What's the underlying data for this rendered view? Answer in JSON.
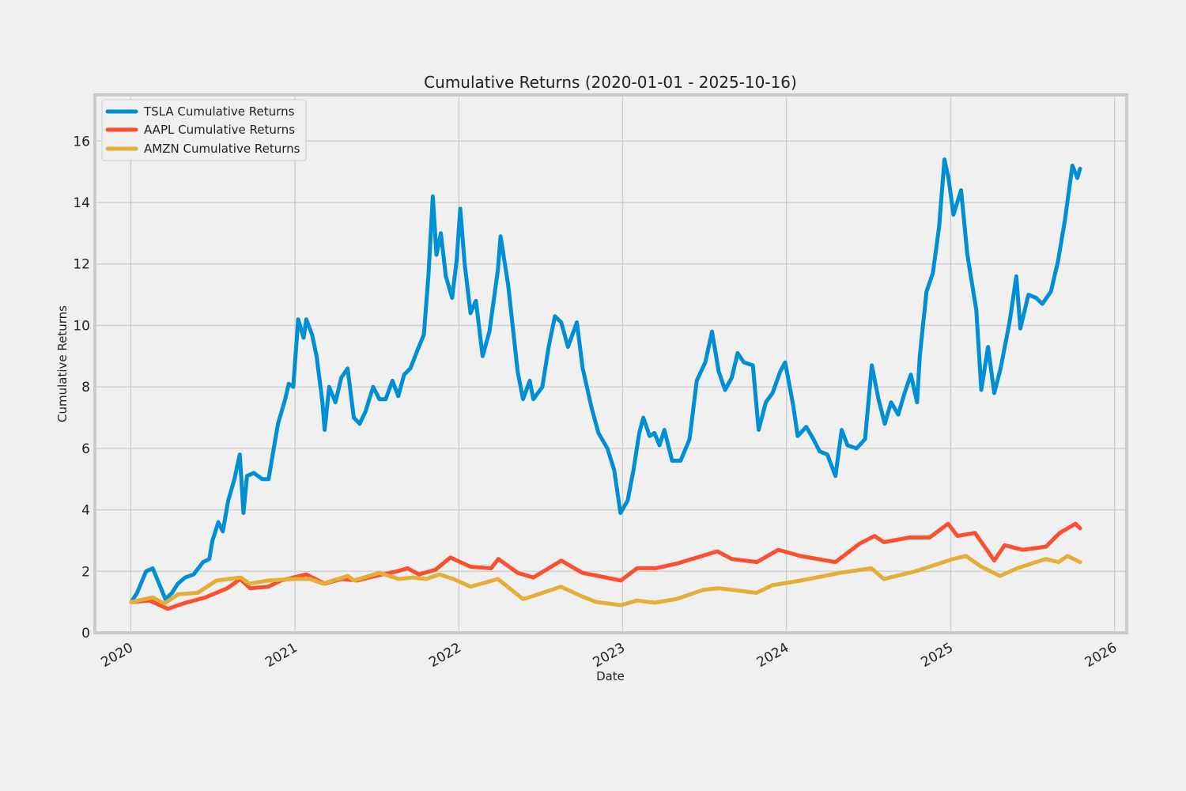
{
  "chart_data": {
    "type": "line",
    "title": "Cumulative Returns (2020-01-01 - 2025-10-16)",
    "xlabel": "Date",
    "ylabel": "Cumulative Returns",
    "xlim": [
      "2019-10-13",
      "2026-01-28"
    ],
    "ylim": [
      0,
      17.5
    ],
    "x_ticks": [
      "2020",
      "2021",
      "2022",
      "2023",
      "2024",
      "2025",
      "2026"
    ],
    "y_ticks": [
      0,
      2,
      4,
      6,
      8,
      10,
      12,
      14,
      16
    ],
    "grid": true,
    "legend_position": "top-left",
    "series": [
      {
        "name": "TSLA Cumulative Returns",
        "color": "#008fd5",
        "points": [
          [
            "2020-01-02",
            1.0
          ],
          [
            "2020-01-15",
            1.3
          ],
          [
            "2020-02-04",
            2.0
          ],
          [
            "2020-02-19",
            2.1
          ],
          [
            "2020-03-04",
            1.6
          ],
          [
            "2020-03-18",
            1.1
          ],
          [
            "2020-04-02",
            1.3
          ],
          [
            "2020-04-15",
            1.6
          ],
          [
            "2020-05-01",
            1.8
          ],
          [
            "2020-05-20",
            1.9
          ],
          [
            "2020-06-10",
            2.3
          ],
          [
            "2020-06-24",
            2.4
          ],
          [
            "2020-07-01",
            3.0
          ],
          [
            "2020-07-14",
            3.6
          ],
          [
            "2020-07-24",
            3.3
          ],
          [
            "2020-08-05",
            4.3
          ],
          [
            "2020-08-19",
            5.0
          ],
          [
            "2020-08-31",
            5.8
          ],
          [
            "2020-09-08",
            3.9
          ],
          [
            "2020-09-16",
            5.1
          ],
          [
            "2020-10-01",
            5.2
          ],
          [
            "2020-10-20",
            5.0
          ],
          [
            "2020-11-03",
            5.0
          ],
          [
            "2020-11-10",
            5.6
          ],
          [
            "2020-11-24",
            6.8
          ],
          [
            "2020-12-10",
            7.6
          ],
          [
            "2020-12-18",
            8.1
          ],
          [
            "2020-12-28",
            8.0
          ],
          [
            "2021-01-08",
            10.2
          ],
          [
            "2021-01-20",
            9.6
          ],
          [
            "2021-01-26",
            10.2
          ],
          [
            "2021-02-08",
            9.7
          ],
          [
            "2021-02-18",
            9.0
          ],
          [
            "2021-03-03",
            7.5
          ],
          [
            "2021-03-08",
            6.6
          ],
          [
            "2021-03-18",
            8.0
          ],
          [
            "2021-04-01",
            7.5
          ],
          [
            "2021-04-14",
            8.3
          ],
          [
            "2021-04-28",
            8.6
          ],
          [
            "2021-05-12",
            7.0
          ],
          [
            "2021-05-25",
            6.8
          ],
          [
            "2021-06-07",
            7.2
          ],
          [
            "2021-06-24",
            8.0
          ],
          [
            "2021-07-08",
            7.6
          ],
          [
            "2021-07-22",
            7.6
          ],
          [
            "2021-08-06",
            8.2
          ],
          [
            "2021-08-19",
            7.7
          ],
          [
            "2021-09-01",
            8.4
          ],
          [
            "2021-09-15",
            8.6
          ],
          [
            "2021-10-01",
            9.2
          ],
          [
            "2021-10-15",
            9.7
          ],
          [
            "2021-10-25",
            11.6
          ],
          [
            "2021-11-04",
            14.2
          ],
          [
            "2021-11-12",
            12.3
          ],
          [
            "2021-11-22",
            13.0
          ],
          [
            "2021-12-03",
            11.6
          ],
          [
            "2021-12-17",
            10.9
          ],
          [
            "2021-12-27",
            12.1
          ],
          [
            "2022-01-04",
            13.8
          ],
          [
            "2022-01-14",
            12.0
          ],
          [
            "2022-01-27",
            10.4
          ],
          [
            "2022-02-08",
            10.8
          ],
          [
            "2022-02-23",
            9.0
          ],
          [
            "2022-03-10",
            9.8
          ],
          [
            "2022-03-29",
            11.8
          ],
          [
            "2022-04-04",
            12.9
          ],
          [
            "2022-04-21",
            11.3
          ],
          [
            "2022-05-12",
            8.5
          ],
          [
            "2022-05-24",
            7.6
          ],
          [
            "2022-06-08",
            8.2
          ],
          [
            "2022-06-16",
            7.6
          ],
          [
            "2022-07-06",
            8.0
          ],
          [
            "2022-07-20",
            9.3
          ],
          [
            "2022-08-03",
            10.3
          ],
          [
            "2022-08-17",
            10.1
          ],
          [
            "2022-09-01",
            9.3
          ],
          [
            "2022-09-21",
            10.1
          ],
          [
            "2022-10-04",
            8.6
          ],
          [
            "2022-10-24",
            7.3
          ],
          [
            "2022-11-08",
            6.5
          ],
          [
            "2022-11-28",
            6.0
          ],
          [
            "2022-12-13",
            5.3
          ],
          [
            "2022-12-27",
            3.9
          ],
          [
            "2023-01-12",
            4.3
          ],
          [
            "2023-01-25",
            5.3
          ],
          [
            "2023-02-07",
            6.5
          ],
          [
            "2023-02-16",
            7.0
          ],
          [
            "2023-03-02",
            6.4
          ],
          [
            "2023-03-13",
            6.5
          ],
          [
            "2023-03-24",
            6.1
          ],
          [
            "2023-04-04",
            6.6
          ],
          [
            "2023-04-21",
            5.6
          ],
          [
            "2023-05-10",
            5.6
          ],
          [
            "2023-05-30",
            6.3
          ],
          [
            "2023-06-15",
            8.2
          ],
          [
            "2023-07-04",
            8.8
          ],
          [
            "2023-07-19",
            9.8
          ],
          [
            "2023-08-03",
            8.5
          ],
          [
            "2023-08-17",
            7.9
          ],
          [
            "2023-09-01",
            8.3
          ],
          [
            "2023-09-14",
            9.1
          ],
          [
            "2023-09-28",
            8.8
          ],
          [
            "2023-10-18",
            8.7
          ],
          [
            "2023-10-31",
            6.6
          ],
          [
            "2023-11-16",
            7.5
          ],
          [
            "2023-12-01",
            7.8
          ],
          [
            "2023-12-18",
            8.5
          ],
          [
            "2023-12-29",
            8.8
          ],
          [
            "2024-01-16",
            7.4
          ],
          [
            "2024-01-26",
            6.4
          ],
          [
            "2024-02-14",
            6.7
          ],
          [
            "2024-03-01",
            6.3
          ],
          [
            "2024-03-15",
            5.9
          ],
          [
            "2024-04-01",
            5.8
          ],
          [
            "2024-04-19",
            5.1
          ],
          [
            "2024-05-03",
            6.6
          ],
          [
            "2024-05-16",
            6.1
          ],
          [
            "2024-06-05",
            6.0
          ],
          [
            "2024-06-24",
            6.3
          ],
          [
            "2024-07-09",
            8.7
          ],
          [
            "2024-07-24",
            7.6
          ],
          [
            "2024-08-07",
            6.8
          ],
          [
            "2024-08-21",
            7.5
          ],
          [
            "2024-09-06",
            7.1
          ],
          [
            "2024-09-20",
            7.8
          ],
          [
            "2024-10-04",
            8.4
          ],
          [
            "2024-10-18",
            7.5
          ],
          [
            "2024-10-24",
            9.0
          ],
          [
            "2024-11-08",
            11.1
          ],
          [
            "2024-11-22",
            11.7
          ],
          [
            "2024-12-06",
            13.2
          ],
          [
            "2024-12-18",
            15.4
          ],
          [
            "2024-12-27",
            14.8
          ],
          [
            "2025-01-07",
            13.6
          ],
          [
            "2025-01-24",
            14.4
          ],
          [
            "2025-02-07",
            12.3
          ],
          [
            "2025-02-27",
            10.5
          ],
          [
            "2025-03-10",
            7.9
          ],
          [
            "2025-03-25",
            9.3
          ],
          [
            "2025-04-08",
            7.8
          ],
          [
            "2025-04-22",
            8.6
          ],
          [
            "2025-05-12",
            10.1
          ],
          [
            "2025-05-27",
            11.6
          ],
          [
            "2025-06-05",
            9.9
          ],
          [
            "2025-06-23",
            11.0
          ],
          [
            "2025-07-10",
            10.9
          ],
          [
            "2025-07-24",
            10.7
          ],
          [
            "2025-08-12",
            11.1
          ],
          [
            "2025-08-28",
            12.1
          ],
          [
            "2025-09-12",
            13.4
          ],
          [
            "2025-09-29",
            15.2
          ],
          [
            "2025-10-10",
            14.8
          ],
          [
            "2025-10-16",
            15.1
          ]
        ]
      },
      {
        "name": "AAPL Cumulative Returns",
        "color": "#fc4f30",
        "points": [
          [
            "2020-01-02",
            1.0
          ],
          [
            "2020-02-12",
            1.05
          ],
          [
            "2020-03-23",
            0.78
          ],
          [
            "2020-05-01",
            0.97
          ],
          [
            "2020-06-15",
            1.15
          ],
          [
            "2020-08-03",
            1.45
          ],
          [
            "2020-09-01",
            1.75
          ],
          [
            "2020-09-23",
            1.45
          ],
          [
            "2020-11-02",
            1.5
          ],
          [
            "2020-12-01",
            1.7
          ],
          [
            "2021-01-26",
            1.9
          ],
          [
            "2021-03-08",
            1.6
          ],
          [
            "2021-04-15",
            1.75
          ],
          [
            "2021-05-19",
            1.7
          ],
          [
            "2021-06-30",
            1.85
          ],
          [
            "2021-08-16",
            2.0
          ],
          [
            "2021-09-09",
            2.1
          ],
          [
            "2021-10-04",
            1.9
          ],
          [
            "2021-11-10",
            2.05
          ],
          [
            "2021-12-13",
            2.45
          ],
          [
            "2022-01-27",
            2.15
          ],
          [
            "2022-03-14",
            2.1
          ],
          [
            "2022-03-30",
            2.4
          ],
          [
            "2022-05-12",
            1.95
          ],
          [
            "2022-06-16",
            1.8
          ],
          [
            "2022-08-17",
            2.35
          ],
          [
            "2022-10-03",
            1.95
          ],
          [
            "2022-12-28",
            1.7
          ],
          [
            "2023-02-02",
            2.1
          ],
          [
            "2023-03-15",
            2.1
          ],
          [
            "2023-05-01",
            2.25
          ],
          [
            "2023-07-31",
            2.65
          ],
          [
            "2023-09-01",
            2.4
          ],
          [
            "2023-10-27",
            2.3
          ],
          [
            "2023-12-14",
            2.7
          ],
          [
            "2024-02-01",
            2.5
          ],
          [
            "2024-04-19",
            2.3
          ],
          [
            "2024-06-12",
            2.9
          ],
          [
            "2024-07-15",
            3.15
          ],
          [
            "2024-08-05",
            2.95
          ],
          [
            "2024-10-01",
            3.1
          ],
          [
            "2024-11-15",
            3.1
          ],
          [
            "2024-12-26",
            3.55
          ],
          [
            "2025-01-16",
            3.15
          ],
          [
            "2025-02-24",
            3.25
          ],
          [
            "2025-04-08",
            2.35
          ],
          [
            "2025-05-01",
            2.85
          ],
          [
            "2025-06-10",
            2.7
          ],
          [
            "2025-08-01",
            2.8
          ],
          [
            "2025-09-01",
            3.25
          ],
          [
            "2025-10-06",
            3.55
          ],
          [
            "2025-10-16",
            3.4
          ]
        ]
      },
      {
        "name": "AMZN Cumulative Returns",
        "color": "#e5ae38",
        "points": [
          [
            "2020-01-02",
            1.0
          ],
          [
            "2020-02-19",
            1.15
          ],
          [
            "2020-03-16",
            0.95
          ],
          [
            "2020-04-15",
            1.25
          ],
          [
            "2020-05-29",
            1.3
          ],
          [
            "2020-07-10",
            1.7
          ],
          [
            "2020-09-02",
            1.8
          ],
          [
            "2020-09-21",
            1.6
          ],
          [
            "2020-11-03",
            1.7
          ],
          [
            "2020-12-30",
            1.75
          ],
          [
            "2021-02-03",
            1.75
          ],
          [
            "2021-03-04",
            1.6
          ],
          [
            "2021-04-29",
            1.85
          ],
          [
            "2021-05-12",
            1.7
          ],
          [
            "2021-07-08",
            1.95
          ],
          [
            "2021-08-20",
            1.75
          ],
          [
            "2021-09-20",
            1.8
          ],
          [
            "2021-10-20",
            1.75
          ],
          [
            "2021-11-19",
            1.9
          ],
          [
            "2021-12-20",
            1.75
          ],
          [
            "2022-01-27",
            1.5
          ],
          [
            "2022-03-29",
            1.75
          ],
          [
            "2022-05-24",
            1.1
          ],
          [
            "2022-06-16",
            1.2
          ],
          [
            "2022-08-16",
            1.5
          ],
          [
            "2022-09-30",
            1.2
          ],
          [
            "2022-11-03",
            1.0
          ],
          [
            "2022-12-28",
            0.9
          ],
          [
            "2023-02-02",
            1.05
          ],
          [
            "2023-03-13",
            0.98
          ],
          [
            "2023-05-01",
            1.1
          ],
          [
            "2023-06-30",
            1.4
          ],
          [
            "2023-08-03",
            1.45
          ],
          [
            "2023-10-26",
            1.3
          ],
          [
            "2023-12-01",
            1.55
          ],
          [
            "2024-02-02",
            1.7
          ],
          [
            "2024-04-29",
            1.95
          ],
          [
            "2024-07-08",
            2.1
          ],
          [
            "2024-08-05",
            1.75
          ],
          [
            "2024-10-14",
            2.0
          ],
          [
            "2024-11-25",
            2.2
          ],
          [
            "2025-01-06",
            2.4
          ],
          [
            "2025-02-04",
            2.5
          ],
          [
            "2025-03-10",
            2.15
          ],
          [
            "2025-04-21",
            1.85
          ],
          [
            "2025-05-29",
            2.1
          ],
          [
            "2025-07-31",
            2.4
          ],
          [
            "2025-08-29",
            2.3
          ],
          [
            "2025-09-18",
            2.5
          ],
          [
            "2025-10-16",
            2.3
          ]
        ]
      }
    ]
  }
}
